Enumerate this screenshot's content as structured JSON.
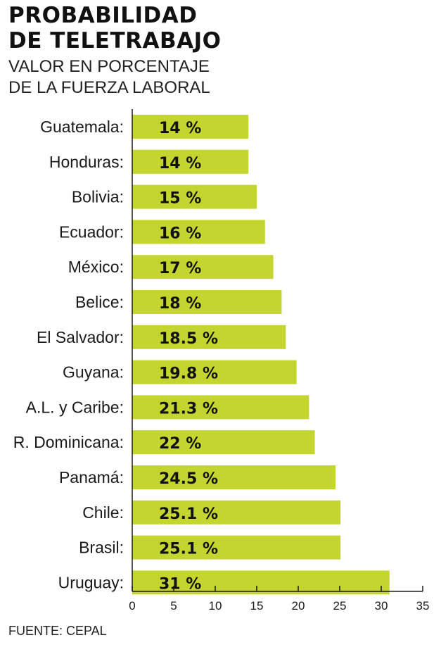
{
  "title_line1": "PROBABILIDAD",
  "title_line2": "DE TELETRABAJO",
  "subtitle_line1": "VALOR EN PORCENTAJE",
  "subtitle_line2": "DE LA FUERZA LABORAL",
  "source": "FUENTE: CEPAL",
  "colors": {
    "bar": "#c4d52f",
    "text": "#1a1a1a",
    "axis": "#1a1a1a"
  },
  "chart_data": {
    "type": "bar",
    "orientation": "horizontal",
    "title": "PROBABILIDAD DE TELETRABAJO",
    "subtitle": "VALOR EN PORCENTAJE DE LA FUERZA LABORAL",
    "xlabel": "",
    "ylabel": "",
    "xlim": [
      0,
      35
    ],
    "xticks": [
      0,
      5,
      10,
      15,
      20,
      25,
      30,
      35
    ],
    "grid": false,
    "categories": [
      "Guatemala:",
      "Honduras:",
      "Bolivia:",
      "Ecuador:",
      "México:",
      "Belice:",
      "El Salvador:",
      "Guyana:",
      "A.L. y Caribe:",
      "R. Dominicana:",
      "Panamá:",
      "Chile:",
      "Brasil:",
      "Uruguay:"
    ],
    "values": [
      14,
      14,
      15,
      16,
      17,
      18,
      18.5,
      19.8,
      21.3,
      22,
      24.5,
      25.1,
      25.1,
      31
    ],
    "labels": [
      "14 %",
      "14 %",
      "15 %",
      "16 %",
      "17 %",
      "18 %",
      "18.5 %",
      "19.8 %",
      "21.3 %",
      "22 %",
      "24.5 %",
      "25.1 %",
      "25.1 %",
      "31 %"
    ]
  }
}
